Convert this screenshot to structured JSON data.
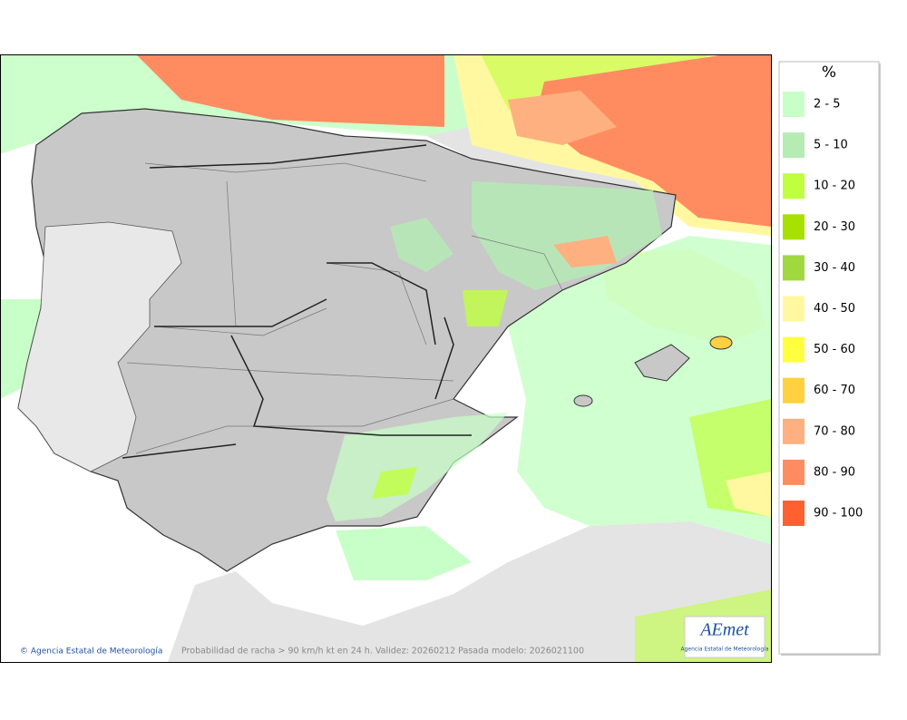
{
  "map": {
    "copyright": "© Agencia Estatal de Meteorología",
    "caption": "Probabilidad de racha > 90 km/h kt en 24 h. Validez: 20260212 Pasada modelo: 2026021100",
    "logo": {
      "name": "AEmet",
      "subtitle": "Agencia Estatal de Meteorología"
    },
    "legend": {
      "title": "%",
      "items": [
        {
          "label": "2 - 5",
          "color": "#c8ffc8"
        },
        {
          "label": "5 - 10",
          "color": "#b4ecb4"
        },
        {
          "label": "10 - 20",
          "color": "#c0ff40"
        },
        {
          "label": "20 - 30",
          "color": "#a8e000"
        },
        {
          "label": "30 - 40",
          "color": "#a0d840"
        },
        {
          "label": "40 - 50",
          "color": "#fff8a0"
        },
        {
          "label": "50 - 60",
          "color": "#ffff40"
        },
        {
          "label": "60 - 70",
          "color": "#ffd040"
        },
        {
          "label": "70 - 80",
          "color": "#ffb080"
        },
        {
          "label": "80 - 90",
          "color": "#ff8c60"
        },
        {
          "label": "90 - 100",
          "color": "#ff6030"
        }
      ]
    }
  }
}
